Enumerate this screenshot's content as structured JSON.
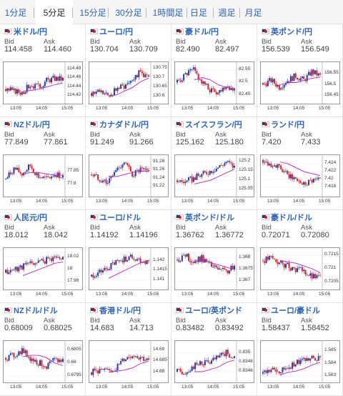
{
  "tabs": [
    "1分足",
    "5分足",
    "15分足",
    "30分足",
    "1時間足",
    "日足",
    "週足",
    "月足"
  ],
  "active_tab": 1,
  "labels": {
    "bid": "Bid",
    "ask": "Ask"
  },
  "colors": {
    "up": "#1f3fa8",
    "down": "#e0202a",
    "ma": "#c020c0",
    "link": "#2a63b8"
  },
  "chart_data": [
    {
      "type": "candlestick",
      "title": "米ドル/円",
      "bid": "114.458",
      "ask": "114.460",
      "yticks": [
        "114.48",
        "114.46",
        "114.44",
        "114.42"
      ],
      "xticks": [
        "13:05",
        "14:05",
        "15:05"
      ],
      "ylim": [
        114.405,
        114.49
      ],
      "trend": [
        114.435,
        114.43,
        114.428,
        114.445,
        114.44,
        114.455,
        114.46,
        114.458
      ],
      "ma": [
        114.43,
        114.432,
        114.435,
        114.44,
        114.445,
        114.449
      ]
    },
    {
      "type": "candlestick",
      "title": "ユーロ/円",
      "bid": "130.704",
      "ask": "130.709",
      "yticks": [
        "130.75",
        "130.7",
        "130.65",
        "130.6"
      ],
      "xticks": [
        "13:05",
        "14:05",
        "15:05"
      ],
      "ylim": [
        130.57,
        130.77
      ],
      "trend": [
        130.62,
        130.63,
        130.6,
        130.64,
        130.66,
        130.7,
        130.73,
        130.7
      ],
      "ma": [
        130.6,
        130.61,
        130.63,
        130.65,
        130.68,
        130.7
      ]
    },
    {
      "type": "candlestick",
      "title": "豪ドル/円",
      "bid": "82.490",
      "ask": "82.497",
      "yticks": [
        "82.55",
        "82.5",
        "82.45"
      ],
      "xticks": [
        "13:05",
        "14:05",
        "15:05"
      ],
      "ylim": [
        82.42,
        82.57
      ],
      "trend": [
        82.5,
        82.53,
        82.55,
        82.5,
        82.47,
        82.46,
        82.49,
        82.47
      ],
      "ma": [
        82.51,
        82.52,
        82.51,
        82.49,
        82.48,
        82.47
      ]
    },
    {
      "type": "candlestick",
      "title": "英ポンド/円",
      "bid": "156.539",
      "ask": "156.549",
      "yticks": [
        "156.55",
        "156.5",
        "156.45"
      ],
      "xticks": [
        "13:05",
        "14:05",
        "15:05"
      ],
      "ylim": [
        156.42,
        156.59
      ],
      "trend": [
        156.5,
        156.52,
        156.49,
        156.52,
        156.54,
        156.52,
        156.56,
        156.54
      ],
      "ma": [
        156.5,
        156.51,
        156.51,
        156.52,
        156.53,
        156.535
      ]
    },
    {
      "type": "candlestick",
      "title": "NZドル/円",
      "bid": "77.849",
      "ask": "77.861",
      "yticks": [
        "77.85",
        "77.8"
      ],
      "xticks": [
        "13:05",
        "14:05",
        "15:05"
      ],
      "ylim": [
        77.76,
        77.9
      ],
      "trend": [
        77.82,
        77.86,
        77.84,
        77.87,
        77.83,
        77.82,
        77.84,
        77.83
      ],
      "ma": [
        77.84,
        77.845,
        77.845,
        77.84,
        77.835,
        77.835
      ]
    },
    {
      "type": "candlestick",
      "title": "カナダドル/円",
      "bid": "91.249",
      "ask": "91.266",
      "yticks": [
        "91.28",
        "91.26",
        "91.24",
        "91.22"
      ],
      "xticks": [
        "13:05",
        "14:05",
        "15:05"
      ],
      "ylim": [
        91.2,
        91.29
      ],
      "trend": [
        91.25,
        91.24,
        91.23,
        91.26,
        91.28,
        91.25,
        91.26,
        91.255
      ],
      "ma": [
        91.245,
        91.245,
        91.25,
        91.255,
        91.258,
        91.258
      ]
    },
    {
      "type": "candlestick",
      "title": "スイスフラン/円",
      "bid": "125.162",
      "ask": "125.180",
      "yticks": [
        "125.2",
        "125.15",
        "125.1",
        "125.05"
      ],
      "xticks": [
        "13:05",
        "14:05",
        "15:05"
      ],
      "ylim": [
        125.02,
        125.22
      ],
      "trend": [
        125.1,
        125.09,
        125.11,
        125.13,
        125.15,
        125.17,
        125.2,
        125.17
      ],
      "ma": [
        125.08,
        125.09,
        125.1,
        125.12,
        125.14,
        125.16
      ]
    },
    {
      "type": "candlestick",
      "title": "ランド/円",
      "bid": "7.420",
      "ask": "7.433",
      "yticks": [
        "7.424",
        "7.422",
        "7.42",
        "7.418"
      ],
      "xticks": [
        "13:05",
        "14:05",
        "15:05"
      ],
      "ylim": [
        7.416,
        7.4255
      ],
      "trend": [
        7.425,
        7.424,
        7.423,
        7.421,
        7.42,
        7.419,
        7.42,
        7.42
      ],
      "ma": [
        7.4245,
        7.424,
        7.423,
        7.422,
        7.4215,
        7.421
      ]
    },
    {
      "type": "candlestick",
      "title": "人民元/円",
      "bid": "18.012",
      "ask": "18.042",
      "yticks": [
        "18.02",
        "18",
        "17.98"
      ],
      "xticks": [
        "13:05",
        "14:05",
        "15:05"
      ],
      "ylim": [
        17.97,
        18.03
      ],
      "trend": [
        17.995,
        18.0,
        18.005,
        18.01,
        18.012,
        18.015,
        18.02,
        18.018
      ],
      "ma": [
        17.99,
        17.995,
        18.0,
        18.005,
        18.01,
        18.012
      ]
    },
    {
      "type": "candlestick",
      "title": "ユーロ/ドル",
      "bid": "1.14192",
      "ask": "1.14196",
      "yticks": [
        "1.142",
        "1.1415",
        "1.141"
      ],
      "xticks": [
        "13:05",
        "14:05",
        "15:05"
      ],
      "ylim": [
        1.1406,
        1.1425
      ],
      "trend": [
        1.1412,
        1.1414,
        1.1416,
        1.1419,
        1.1421,
        1.1422,
        1.142,
        1.1419
      ],
      "ma": [
        1.1411,
        1.1413,
        1.1415,
        1.1417,
        1.1419,
        1.142
      ]
    },
    {
      "type": "candlestick",
      "title": "英ポンド/ドル",
      "bid": "1.36762",
      "ask": "1.36772",
      "yticks": [
        "1.368",
        "1.3675",
        "1.367"
      ],
      "xticks": [
        "13:05",
        "14:05",
        "15:05"
      ],
      "ylim": [
        1.3667,
        1.3683
      ],
      "trend": [
        1.3679,
        1.3681,
        1.3678,
        1.368,
        1.3677,
        1.3675,
        1.3674,
        1.3676
      ],
      "ma": [
        1.3679,
        1.3679,
        1.3678,
        1.3677,
        1.3676,
        1.3675
      ]
    },
    {
      "type": "candlestick",
      "title": "豪ドル/ドル",
      "bid": "0.72071",
      "ask": "0.72080",
      "yticks": [
        "0.7215",
        "0.721",
        "0.7205"
      ],
      "xticks": [
        "13:05",
        "14:05",
        "15:05"
      ],
      "ylim": [
        0.7203,
        0.72165
      ],
      "trend": [
        0.7213,
        0.7214,
        0.7212,
        0.7211,
        0.721,
        0.7209,
        0.7207,
        0.7207
      ],
      "ma": [
        0.7213,
        0.72125,
        0.7212,
        0.7211,
        0.721,
        0.72085
      ]
    },
    {
      "type": "candlestick",
      "title": "NZドル/ドル",
      "bid": "0.68009",
      "ask": "0.68025",
      "yticks": [
        "0.6805",
        "0.68",
        "0.6795"
      ],
      "xticks": [
        "13:05",
        "14:05",
        "15:05"
      ],
      "ylim": [
        0.6793,
        0.68075
      ],
      "trend": [
        0.6802,
        0.6803,
        0.6805,
        0.6802,
        0.68,
        0.6799,
        0.6801,
        0.6801
      ],
      "ma": [
        0.68025,
        0.6803,
        0.6803,
        0.6802,
        0.68,
        0.6799
      ]
    },
    {
      "type": "candlestick",
      "title": "香港ドル/円",
      "bid": "14.683",
      "ask": "14.713",
      "yticks": [
        "14.69",
        "14.685",
        "14.68"
      ],
      "xticks": [
        "13:05",
        "14:05",
        "15:05"
      ],
      "ylim": [
        14.676,
        14.693
      ],
      "trend": [
        14.68,
        14.681,
        14.68,
        14.682,
        14.686,
        14.688,
        14.687,
        14.685
      ],
      "ma": [
        14.68,
        14.6805,
        14.681,
        14.682,
        14.684,
        14.685
      ]
    },
    {
      "type": "candlestick",
      "title": "ユーロ/英ポンド",
      "bid": "0.83482",
      "ask": "0.83492",
      "yticks": [
        "0.835",
        "0.8348",
        "0.8346"
      ],
      "xticks": [
        "13:05",
        "14:05",
        "15:05"
      ],
      "ylim": [
        0.8344,
        0.8352
      ],
      "trend": [
        0.8346,
        0.8346,
        0.8347,
        0.8348,
        0.8348,
        0.8349,
        0.835,
        0.8349
      ],
      "ma": [
        0.8346,
        0.8346,
        0.83465,
        0.8347,
        0.8348,
        0.83485
      ]
    },
    {
      "type": "candlestick",
      "title": "ユーロ/豪ドル",
      "bid": "1.58437",
      "ask": "1.58452",
      "yticks": [
        "1.585",
        "1.584",
        "1.583"
      ],
      "xticks": [
        "13:05",
        "14:05",
        "15:05"
      ],
      "ylim": [
        1.5826,
        1.5856
      ],
      "trend": [
        1.5832,
        1.5835,
        1.5833,
        1.5837,
        1.584,
        1.5843,
        1.5846,
        1.5844
      ],
      "ma": [
        1.5831,
        1.5833,
        1.5834,
        1.5836,
        1.5839,
        1.5841
      ]
    }
  ]
}
